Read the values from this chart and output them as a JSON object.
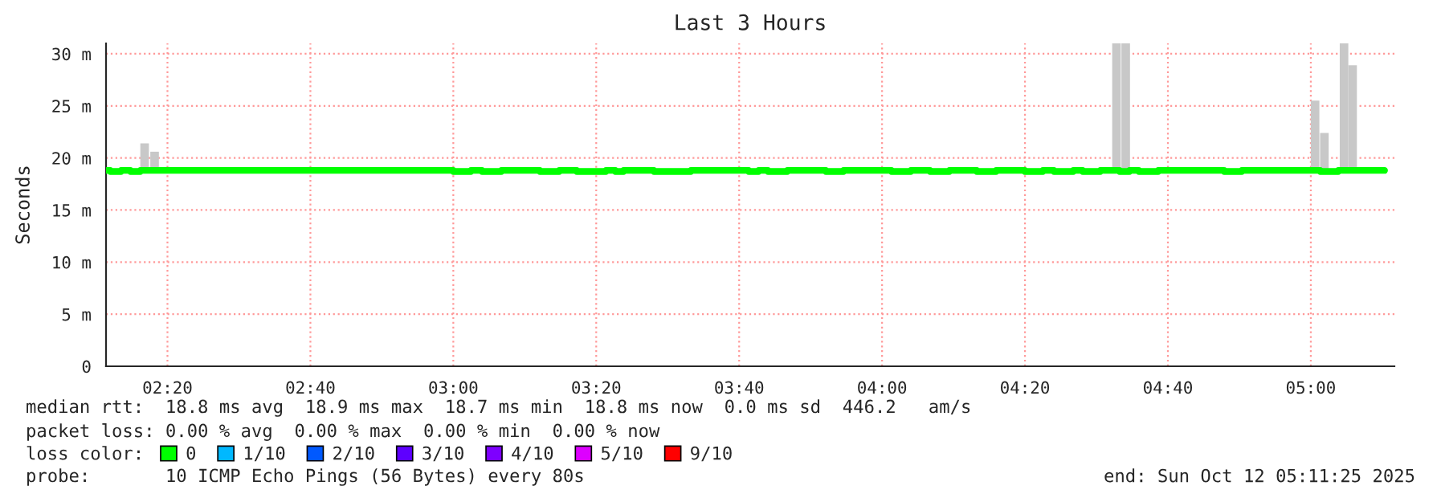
{
  "chart_data": {
    "type": "step",
    "title": "Last 3 Hours",
    "ylabel": "Seconds",
    "xlim": [
      2.19,
      5.195
    ],
    "ylim": [
      0,
      31
    ],
    "xticks": [
      {
        "value": 2.3333,
        "label": "02:20"
      },
      {
        "value": 2.6667,
        "label": "02:40"
      },
      {
        "value": 3.0,
        "label": "03:00"
      },
      {
        "value": 3.3333,
        "label": "03:20"
      },
      {
        "value": 3.6667,
        "label": "03:40"
      },
      {
        "value": 4.0,
        "label": "04:00"
      },
      {
        "value": 4.3333,
        "label": "04:20"
      },
      {
        "value": 4.6667,
        "label": "04:40"
      },
      {
        "value": 5.0,
        "label": "05:00"
      }
    ],
    "yticks": [
      0,
      {
        "value": 5,
        "label": "5 m"
      },
      {
        "value": 10,
        "label": "10 m"
      },
      {
        "value": 15,
        "label": "15 m"
      },
      {
        "value": 20,
        "label": "20 m"
      },
      {
        "value": 25,
        "label": "25 m"
      },
      {
        "value": 30,
        "label": "30 m"
      }
    ],
    "grid": true,
    "legend": "bottom",
    "series": [
      {
        "type": "bar",
        "color": "#c8c8c8",
        "x": [
          2.28,
          2.3033,
          4.5467,
          4.5683,
          5.01,
          5.0317,
          5.0775,
          5.0975
        ],
        "base": [
          18.8,
          18.8,
          18.8,
          18.8,
          18.8,
          18.8,
          18.8,
          18.8
        ],
        "values": [
          2.6,
          1.8,
          12.2,
          12.2,
          6.7,
          3.6,
          12.2,
          10.1
        ]
      },
      {
        "name": "0",
        "color": "#00ff00",
        "x": [
          2.19,
          2.2,
          2.225,
          2.247,
          2.27,
          3.0,
          3.041,
          3.067,
          3.112,
          3.202,
          3.247,
          3.288,
          3.356,
          3.378,
          3.397,
          3.468,
          3.554,
          3.689,
          3.712,
          3.734,
          3.779,
          3.869,
          3.91,
          4.022,
          4.067,
          4.112,
          4.157,
          4.221,
          4.266,
          4.333,
          4.375,
          4.401,
          4.446,
          4.468,
          4.509,
          4.554,
          4.577,
          4.599,
          4.644,
          4.798,
          4.839,
          5.022,
          5.064,
          5.172
        ],
        "values": [
          18.8,
          18.7,
          18.8,
          18.7,
          18.8,
          18.7,
          18.8,
          18.7,
          18.8,
          18.7,
          18.8,
          18.7,
          18.8,
          18.7,
          18.8,
          18.7,
          18.8,
          18.7,
          18.8,
          18.7,
          18.8,
          18.7,
          18.8,
          18.7,
          18.8,
          18.7,
          18.8,
          18.7,
          18.8,
          18.7,
          18.8,
          18.7,
          18.8,
          18.7,
          18.8,
          18.7,
          18.8,
          18.7,
          18.8,
          18.7,
          18.8,
          18.7,
          18.8,
          18.8
        ]
      },
      {
        "name": "1/10",
        "color": "#00b8ff"
      },
      {
        "name": "2/10",
        "color": "#0059ff"
      },
      {
        "name": "3/10",
        "color": "#5e00ff"
      },
      {
        "name": "4/10",
        "color": "#7e00ff"
      },
      {
        "name": "5/10",
        "color": "#dd00ff"
      },
      {
        "name": "9/10",
        "color": "#ff0000"
      }
    ],
    "annotations": [
      "median rtt:  18.8 ms avg  18.9 ms max  18.7 ms min  18.8 ms now  0.0 ms sd  446.2   am/s",
      "packet loss: 0.00 % avg  0.00 % max  0.00 % min  0.00 % now",
      "loss color:",
      "probe:       10 ICMP Echo Pings (56 Bytes) every 80s",
      "end: Sun Oct 12 05:11:25 2025"
    ]
  }
}
